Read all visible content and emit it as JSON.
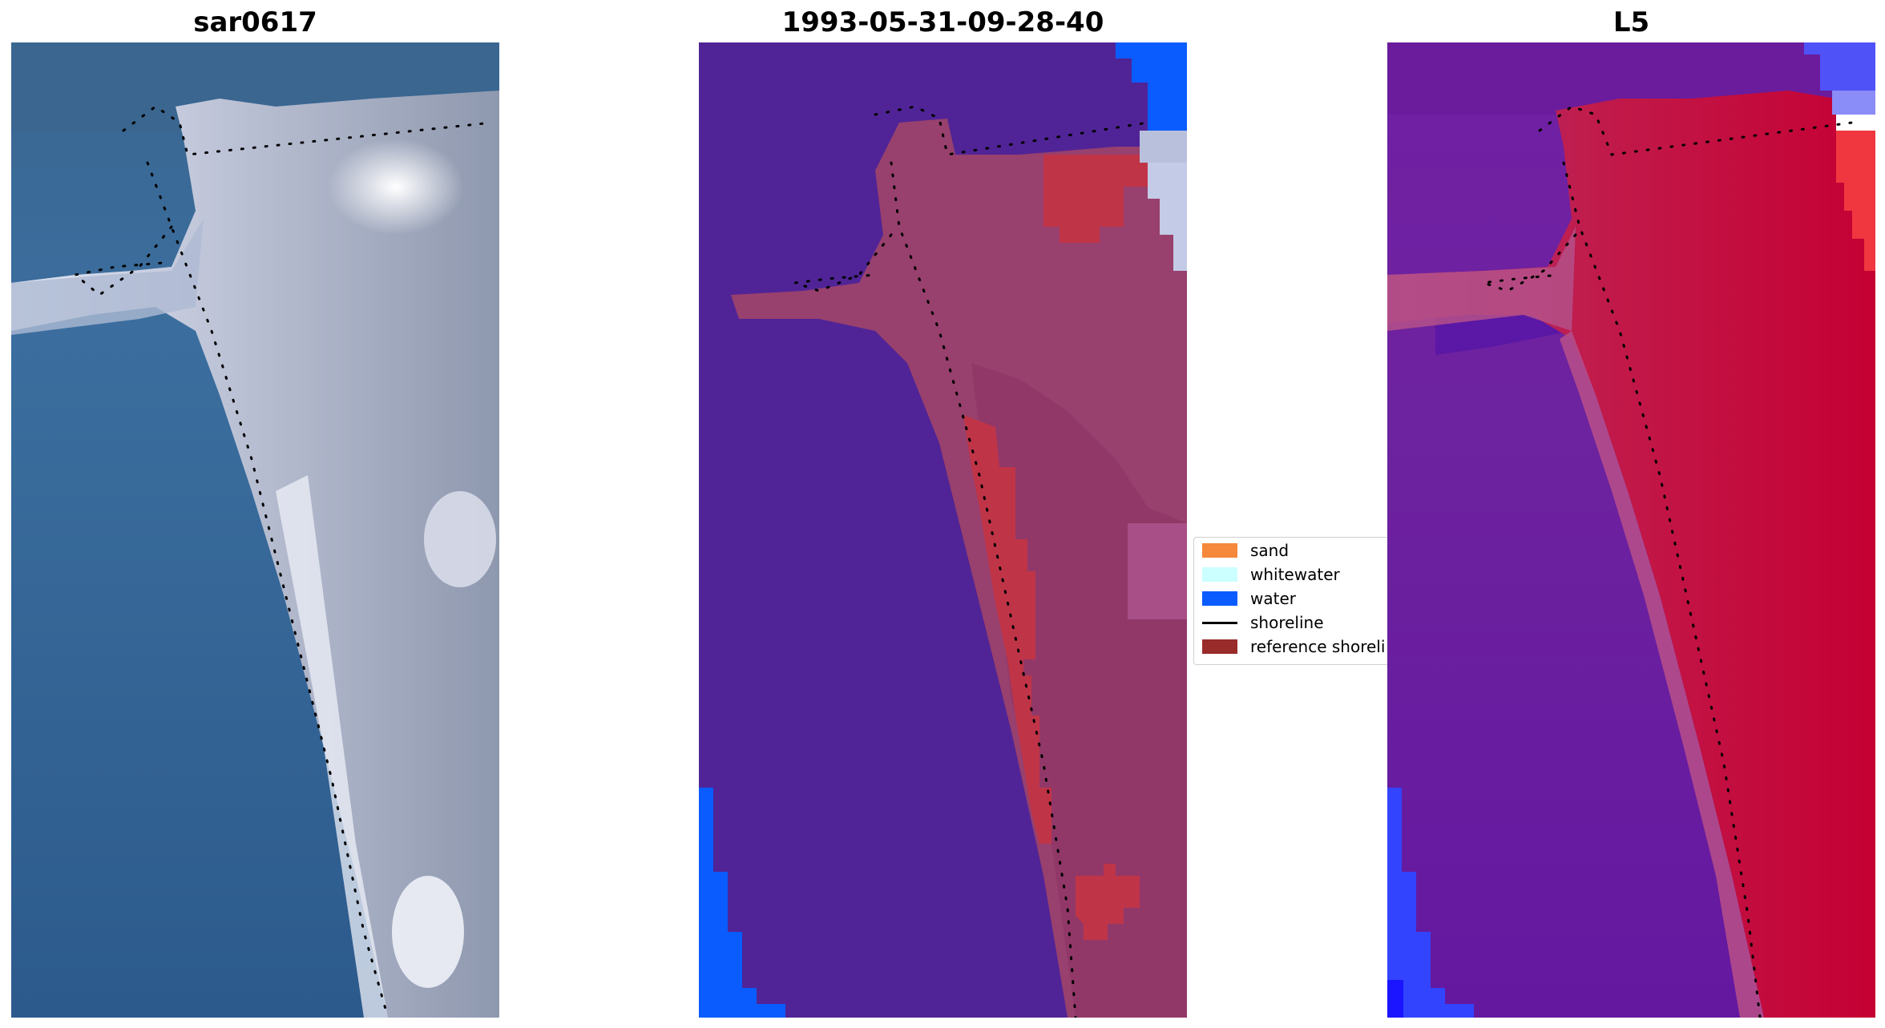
{
  "panels": [
    {
      "title": "sar0617"
    },
    {
      "title": "1993-05-31-09-28-40"
    },
    {
      "title": "L5"
    }
  ],
  "legend": {
    "entries": [
      {
        "label": "sand",
        "color": "#f5883b",
        "kind": "patch"
      },
      {
        "label": "whitewater",
        "color": "#ccffff",
        "kind": "patch"
      },
      {
        "label": "water",
        "color": "#0a5cff",
        "kind": "patch"
      },
      {
        "label": "shoreline",
        "color": "#000000",
        "kind": "line"
      },
      {
        "label": "reference shoreli",
        "color": "#9a2b2b",
        "kind": "patch"
      }
    ]
  },
  "colors": {
    "sea_rgb": "#336a99",
    "land_rgb": "#c7ccdf",
    "class_water_overlay": "#502496",
    "class_land_overlay": "#98406e",
    "reference_shoreline": "#c03447",
    "index_low": "#6a1ea0",
    "index_high": "#c00030"
  }
}
